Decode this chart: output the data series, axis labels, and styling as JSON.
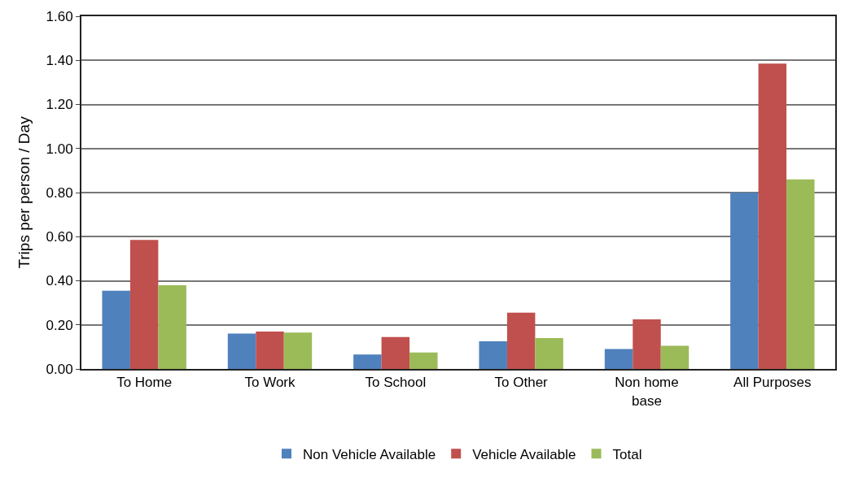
{
  "chart_data": {
    "type": "bar",
    "ylabel": "Trips per person / Day",
    "categories": [
      "To Home",
      "To Work",
      "To School",
      "To Other",
      "Non home base",
      "All Purposes"
    ],
    "series": [
      {
        "name": "Non Vehicle Available",
        "color": "#4f81bd",
        "values": [
          0.355,
          0.16,
          0.065,
          0.125,
          0.09,
          0.8
        ]
      },
      {
        "name": "Vehicle Available",
        "color": "#c0504d",
        "values": [
          0.585,
          0.17,
          0.145,
          0.255,
          0.225,
          1.385
        ]
      },
      {
        "name": "Total",
        "color": "#9bbb59",
        "values": [
          0.38,
          0.165,
          0.075,
          0.14,
          0.105,
          0.86
        ]
      }
    ],
    "ylim": [
      0,
      1.6
    ],
    "yticks": [
      {
        "value": 0,
        "label": "0.00"
      },
      {
        "value": 0.2,
        "label": "0.20"
      },
      {
        "value": 0.4,
        "label": "0.40"
      },
      {
        "value": 0.6,
        "label": "0.60"
      },
      {
        "value": 0.8,
        "label": "0.80"
      },
      {
        "value": 1.0,
        "label": "1.00"
      },
      {
        "value": 1.2,
        "label": "1.20"
      },
      {
        "value": 1.4,
        "label": "1.40"
      },
      {
        "value": 1.6,
        "label": "1.60"
      }
    ],
    "grid": "y",
    "legend": "bottom"
  }
}
